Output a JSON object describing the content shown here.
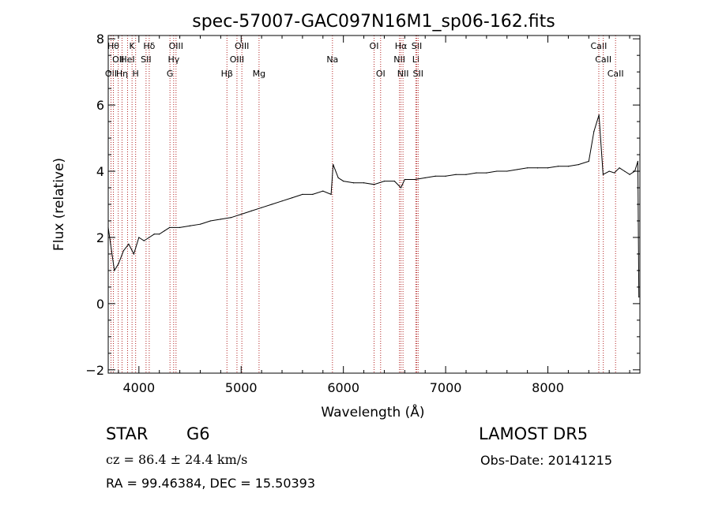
{
  "chart_data": {
    "type": "line",
    "title": "spec-57007-GAC097N16M1_sp06-162.fits",
    "xlabel": "Wavelength (Å)",
    "ylabel": "Flux (relative)",
    "xlim": [
      3700,
      8900
    ],
    "ylim": [
      -2.1,
      8.1
    ],
    "xticks": [
      {
        "value": 4000,
        "label": "4000"
      },
      {
        "value": 5000,
        "label": "5000"
      },
      {
        "value": 6000,
        "label": "6000"
      },
      {
        "value": 7000,
        "label": "7000"
      },
      {
        "value": 8000,
        "label": "8000"
      }
    ],
    "yticks": [
      {
        "value": -2,
        "label": "−2"
      },
      {
        "value": 0,
        "label": "0"
      },
      {
        "value": 2,
        "label": "2"
      },
      {
        "value": 4,
        "label": "4"
      },
      {
        "value": 6,
        "label": "6"
      },
      {
        "value": 8,
        "label": "8"
      }
    ],
    "series": [
      {
        "color": "#000000",
        "x": [
          3700,
          3760,
          3800,
          3850,
          3900,
          3950,
          4000,
          4050,
          4100,
          4150,
          4200,
          4250,
          4300,
          4400,
          4500,
          4600,
          4700,
          4800,
          4900,
          5000,
          5100,
          5200,
          5300,
          5400,
          5500,
          5600,
          5700,
          5800,
          5880,
          5900,
          5950,
          6000,
          6100,
          6200,
          6300,
          6400,
          6500,
          6563,
          6600,
          6700,
          6800,
          6900,
          7000,
          7100,
          7200,
          7300,
          7400,
          7500,
          7600,
          7700,
          7800,
          7900,
          8000,
          8100,
          8200,
          8300,
          8400,
          8450,
          8500,
          8540,
          8600,
          8650,
          8700,
          8750,
          8800,
          8850,
          8880,
          8890
        ],
        "y": [
          2.3,
          1.0,
          1.2,
          1.6,
          1.8,
          1.5,
          2.0,
          1.9,
          2.0,
          2.1,
          2.1,
          2.2,
          2.3,
          2.3,
          2.35,
          2.4,
          2.5,
          2.55,
          2.6,
          2.7,
          2.8,
          2.9,
          3.0,
          3.1,
          3.2,
          3.3,
          3.3,
          3.4,
          3.3,
          4.2,
          3.8,
          3.7,
          3.65,
          3.65,
          3.6,
          3.7,
          3.7,
          3.5,
          3.75,
          3.75,
          3.8,
          3.85,
          3.85,
          3.9,
          3.9,
          3.95,
          3.95,
          4.0,
          4.0,
          4.05,
          4.1,
          4.1,
          4.1,
          4.15,
          4.15,
          4.2,
          4.3,
          5.2,
          5.7,
          3.9,
          4.0,
          3.95,
          4.1,
          4.0,
          3.9,
          4.0,
          4.3,
          0.2
        ]
      }
    ],
    "lines": [
      {
        "x": 3727,
        "label": "OII",
        "row": 3
      },
      {
        "x": 3750,
        "label": "Hθ",
        "row": 1
      },
      {
        "x": 3798,
        "label": "OII",
        "row": 2
      },
      {
        "x": 3835,
        "label": "Hη",
        "row": 3
      },
      {
        "x": 3889,
        "label": "HeI",
        "row": 2
      },
      {
        "x": 3933,
        "label": "K",
        "row": 1
      },
      {
        "x": 3968,
        "label": "H",
        "row": 3
      },
      {
        "x": 4070,
        "label": "SII",
        "row": 2
      },
      {
        "x": 4101,
        "label": "Hδ",
        "row": 1
      },
      {
        "x": 4304,
        "label": "G",
        "row": 3
      },
      {
        "x": 4340,
        "label": "Hγ",
        "row": 2
      },
      {
        "x": 4363,
        "label": "OIII",
        "row": 1
      },
      {
        "x": 4861,
        "label": "Hβ",
        "row": 3
      },
      {
        "x": 4959,
        "label": "OIII",
        "row": 2
      },
      {
        "x": 5007,
        "label": "OIII",
        "row": 1
      },
      {
        "x": 5175,
        "label": "Mg",
        "row": 3
      },
      {
        "x": 5893,
        "label": "Na",
        "row": 2
      },
      {
        "x": 6300,
        "label": "OI",
        "row": 1
      },
      {
        "x": 6364,
        "label": "OI",
        "row": 3
      },
      {
        "x": 6548,
        "label": "NII",
        "row": 2
      },
      {
        "x": 6563,
        "label": "Hα",
        "row": 1
      },
      {
        "x": 6583,
        "label": "NII",
        "row": 3
      },
      {
        "x": 6708,
        "label": "Li",
        "row": 2
      },
      {
        "x": 6717,
        "label": "SII",
        "row": 1
      },
      {
        "x": 6731,
        "label": "SII",
        "row": 3
      },
      {
        "x": 8498,
        "label": "CaII",
        "row": 1
      },
      {
        "x": 8542,
        "label": "CaII",
        "row": 2
      },
      {
        "x": 8662,
        "label": "CaII",
        "row": 3
      }
    ]
  },
  "info": {
    "object_class": "STAR",
    "subclass": "G6",
    "survey": "LAMOST DR5",
    "cz": "cz = 86.4 ± 24.4 km/s",
    "obs_date": "Obs-Date: 20141215",
    "radec": "RA =  99.46384, DEC =  15.50393"
  }
}
